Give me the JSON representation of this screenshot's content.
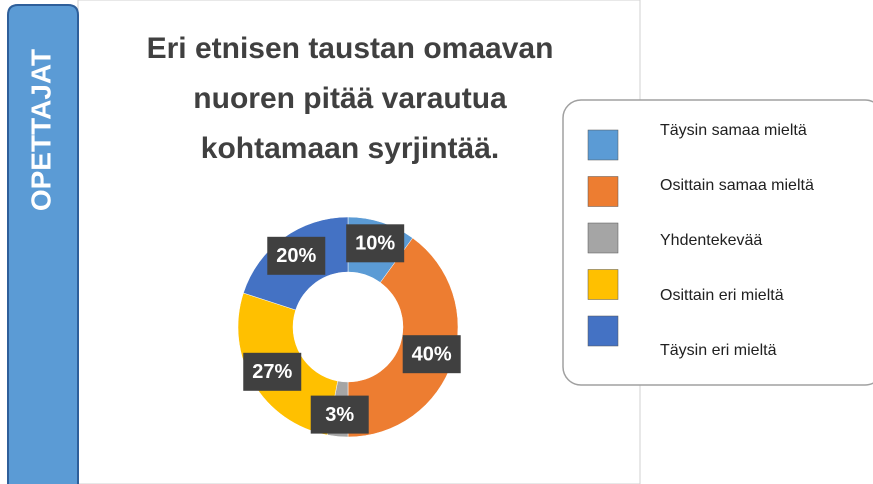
{
  "chart_data": {
    "type": "donut",
    "section_label": "OPETTAJAT",
    "title": [
      "Eri etnisen taustan omaavan",
      "nuoren pitää varautua",
      "kohtamaan syrjintää."
    ],
    "categories": [
      "Täysin samaa mieltä",
      "Osittain samaa mieltä",
      "Yhdentekevää",
      "Osittain eri mieltä",
      "Täysin eri mieltä"
    ],
    "values": [
      10,
      40,
      3,
      27,
      20
    ],
    "value_labels": [
      "10%",
      "40%",
      "3%",
      "27%",
      "20%"
    ],
    "colors": [
      "#5b9bd5",
      "#ed7d31",
      "#a5a5a5",
      "#ffc000",
      "#4472c4"
    ],
    "legend": "right"
  }
}
